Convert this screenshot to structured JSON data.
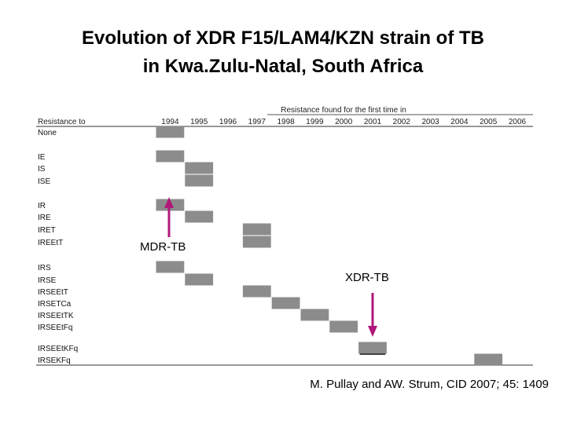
{
  "slide": {
    "title_line1": "Evolution of XDR F15/LAM4/KZN strain of TB",
    "title_line2": "in Kwa.Zulu-Natal, South Africa",
    "citation": "M. Pullay and AW. Strum, CID 2007; 45: 1409"
  },
  "table": {
    "header_top": "Resistance found for the first time in",
    "row_header": "Resistance to",
    "years": [
      "1994",
      "1995",
      "1996",
      "1997",
      "1998",
      "1999",
      "2000",
      "2001",
      "2002",
      "2003",
      "2004",
      "2005",
      "2006"
    ],
    "rows": [
      "None",
      "IE",
      "IS",
      "ISE",
      "IR",
      "IRE",
      "IRET",
      "IREEtT",
      "IRS",
      "IRSE",
      "IRSEEtT",
      "IRSETCa",
      "IRSEEtTK",
      "IRSEEtFq",
      "IRSEEtKFq",
      "IRSEKFq"
    ],
    "cells": [
      {
        "row": 0,
        "year": "1994"
      },
      {
        "row": 1,
        "year": "1994"
      },
      {
        "row": 2,
        "year": "1995"
      },
      {
        "row": 3,
        "year": "1995"
      },
      {
        "row": 4,
        "year": "1994"
      },
      {
        "row": 5,
        "year": "1995"
      },
      {
        "row": 6,
        "year": "1997"
      },
      {
        "row": 7,
        "year": "1997"
      },
      {
        "row": 8,
        "year": "1994"
      },
      {
        "row": 9,
        "year": "1995"
      },
      {
        "row": 10,
        "year": "1997"
      },
      {
        "row": 11,
        "year": "1998"
      },
      {
        "row": 12,
        "year": "1999"
      },
      {
        "row": 13,
        "year": "2000"
      },
      {
        "row": 14,
        "year": "2001"
      },
      {
        "row": 15,
        "year": "2005"
      }
    ]
  },
  "annotations": {
    "mdr_label": "MDR-TB",
    "xdr_label": "XDR-TB",
    "arrow_color": "#b0187a"
  }
}
